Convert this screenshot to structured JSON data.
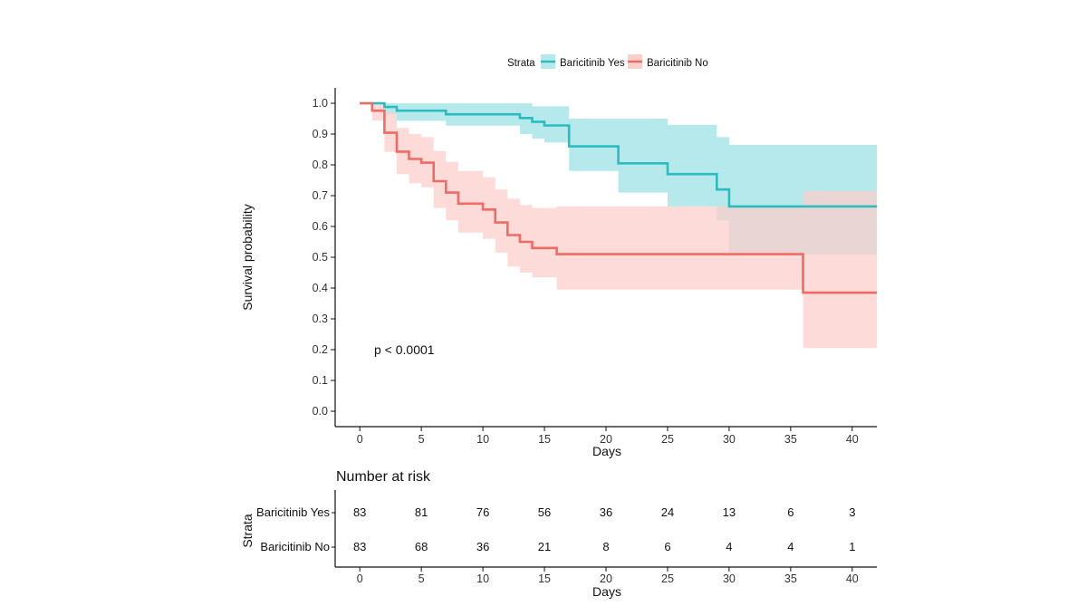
{
  "chart_data": {
    "type": "line",
    "subtype": "kaplan-meier",
    "legend": {
      "title": "Strata",
      "placement": "top",
      "entries": [
        "Baricitinib Yes",
        "Baricitinib No"
      ]
    },
    "xlabel": "Days",
    "ylabel": "Survival probability",
    "xlim": [
      -2,
      42
    ],
    "ylim": [
      -0.05,
      1.05
    ],
    "x_ticks": [
      0,
      5,
      10,
      15,
      20,
      25,
      30,
      35,
      40
    ],
    "y_ticks": [
      0.0,
      0.1,
      0.2,
      0.3,
      0.4,
      0.5,
      0.6,
      0.7,
      0.8,
      0.9,
      1.0
    ],
    "y_tick_labels": [
      "0.0",
      "0.1",
      "0.2",
      "0.3",
      "0.4",
      "0.5",
      "0.6",
      "0.7",
      "0.8",
      "0.9",
      "1.0"
    ],
    "annotation": "p < 0.0001",
    "colors": {
      "yes": "#2cbcbf",
      "no": "#ef6b63",
      "yes_ci": "#b5e9ec",
      "no_ci": "#fbcfcc",
      "overlap": "#cbc2c1"
    },
    "series": [
      {
        "name": "Baricitinib Yes",
        "color": "#2cbcbf",
        "steps": [
          [
            0,
            1.0
          ],
          [
            2,
            0.988
          ],
          [
            3,
            0.976
          ],
          [
            7,
            0.964
          ],
          [
            13,
            0.952
          ],
          [
            14,
            0.94
          ],
          [
            15,
            0.928
          ],
          [
            17,
            0.86
          ],
          [
            21,
            0.805
          ],
          [
            25,
            0.77
          ],
          [
            29,
            0.72
          ],
          [
            30,
            0.665
          ],
          [
            42,
            0.665
          ]
        ],
        "ci_lower": [
          [
            0,
            1.0
          ],
          [
            2,
            0.964
          ],
          [
            3,
            0.943
          ],
          [
            7,
            0.927
          ],
          [
            13,
            0.9
          ],
          [
            14,
            0.885
          ],
          [
            15,
            0.873
          ],
          [
            17,
            0.78
          ],
          [
            21,
            0.71
          ],
          [
            25,
            0.665
          ],
          [
            29,
            0.62
          ],
          [
            30,
            0.51
          ],
          [
            42,
            0.51
          ]
        ],
        "ci_upper": [
          [
            0,
            1.0
          ],
          [
            2,
            1.0
          ],
          [
            3,
            1.0
          ],
          [
            7,
            1.0
          ],
          [
            13,
            1.0
          ],
          [
            14,
            0.99
          ],
          [
            15,
            0.99
          ],
          [
            17,
            0.95
          ],
          [
            21,
            0.95
          ],
          [
            25,
            0.93
          ],
          [
            29,
            0.89
          ],
          [
            30,
            0.865
          ],
          [
            42,
            0.865
          ]
        ]
      },
      {
        "name": "Baricitinib No",
        "color": "#ef6b63",
        "steps": [
          [
            0,
            1.0
          ],
          [
            1,
            0.976
          ],
          [
            2,
            0.904
          ],
          [
            3,
            0.843
          ],
          [
            4,
            0.819
          ],
          [
            5,
            0.807
          ],
          [
            6,
            0.747
          ],
          [
            7,
            0.71
          ],
          [
            8,
            0.674
          ],
          [
            10,
            0.655
          ],
          [
            11,
            0.613
          ],
          [
            12,
            0.572
          ],
          [
            13,
            0.55
          ],
          [
            14,
            0.53
          ],
          [
            16,
            0.51
          ],
          [
            36,
            0.385
          ],
          [
            42,
            0.385
          ]
        ],
        "ci_lower": [
          [
            0,
            1.0
          ],
          [
            1,
            0.944
          ],
          [
            2,
            0.842
          ],
          [
            3,
            0.77
          ],
          [
            4,
            0.74
          ],
          [
            5,
            0.727
          ],
          [
            6,
            0.66
          ],
          [
            7,
            0.62
          ],
          [
            8,
            0.58
          ],
          [
            10,
            0.56
          ],
          [
            11,
            0.515
          ],
          [
            12,
            0.47
          ],
          [
            13,
            0.45
          ],
          [
            14,
            0.435
          ],
          [
            16,
            0.395
          ],
          [
            36,
            0.205
          ],
          [
            42,
            0.205
          ]
        ],
        "ci_upper": [
          [
            0,
            1.0
          ],
          [
            1,
            1.0
          ],
          [
            2,
            0.97
          ],
          [
            3,
            0.92
          ],
          [
            4,
            0.9
          ],
          [
            5,
            0.89
          ],
          [
            6,
            0.845
          ],
          [
            7,
            0.81
          ],
          [
            8,
            0.78
          ],
          [
            10,
            0.76
          ],
          [
            11,
            0.72
          ],
          [
            12,
            0.69
          ],
          [
            13,
            0.67
          ],
          [
            14,
            0.66
          ],
          [
            16,
            0.665
          ],
          [
            36,
            0.715
          ],
          [
            42,
            0.715
          ]
        ]
      }
    ],
    "risk_table": {
      "title": "Number at risk",
      "ylabel": "Strata",
      "xlabel": "Days",
      "times": [
        0,
        5,
        10,
        15,
        20,
        25,
        30,
        35,
        40
      ],
      "rows": [
        {
          "name": "Baricitinib Yes",
          "color": "#2cbcbf",
          "counts": [
            83,
            81,
            76,
            56,
            36,
            24,
            13,
            6,
            3
          ]
        },
        {
          "name": "Baricitinib No",
          "color": "#ef6b63",
          "counts": [
            83,
            68,
            36,
            21,
            8,
            6,
            4,
            4,
            1
          ]
        }
      ]
    }
  }
}
